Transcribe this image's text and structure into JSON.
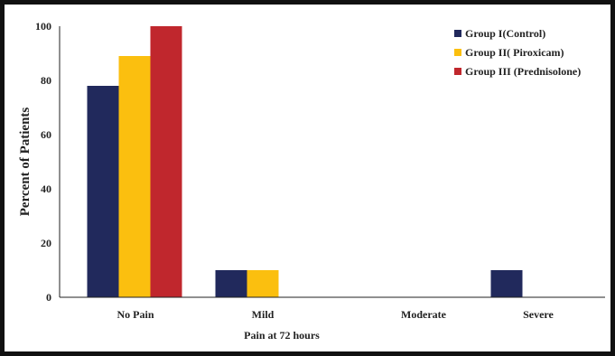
{
  "chart_data": {
    "type": "bar",
    "categories": [
      "No Pain",
      "Mild",
      "Moderate",
      "Severe"
    ],
    "series": [
      {
        "name": "Group I(Control)",
        "color": "#21295c",
        "values": [
          78,
          10,
          0,
          10
        ]
      },
      {
        "name": "Group II( Piroxicam)",
        "color": "#fbbf0f",
        "values": [
          89,
          10,
          0,
          0
        ]
      },
      {
        "name": "Group III (Prednisolone)",
        "color": "#c0272d",
        "values": [
          100,
          0,
          0,
          0
        ]
      }
    ],
    "xlabel": "Pain at 72 hours",
    "ylabel": "Percent of Patients",
    "ylim": [
      0,
      100
    ],
    "yticks": [
      0,
      20,
      40,
      60,
      80,
      100
    ],
    "grid": false,
    "legend": "top-right"
  }
}
